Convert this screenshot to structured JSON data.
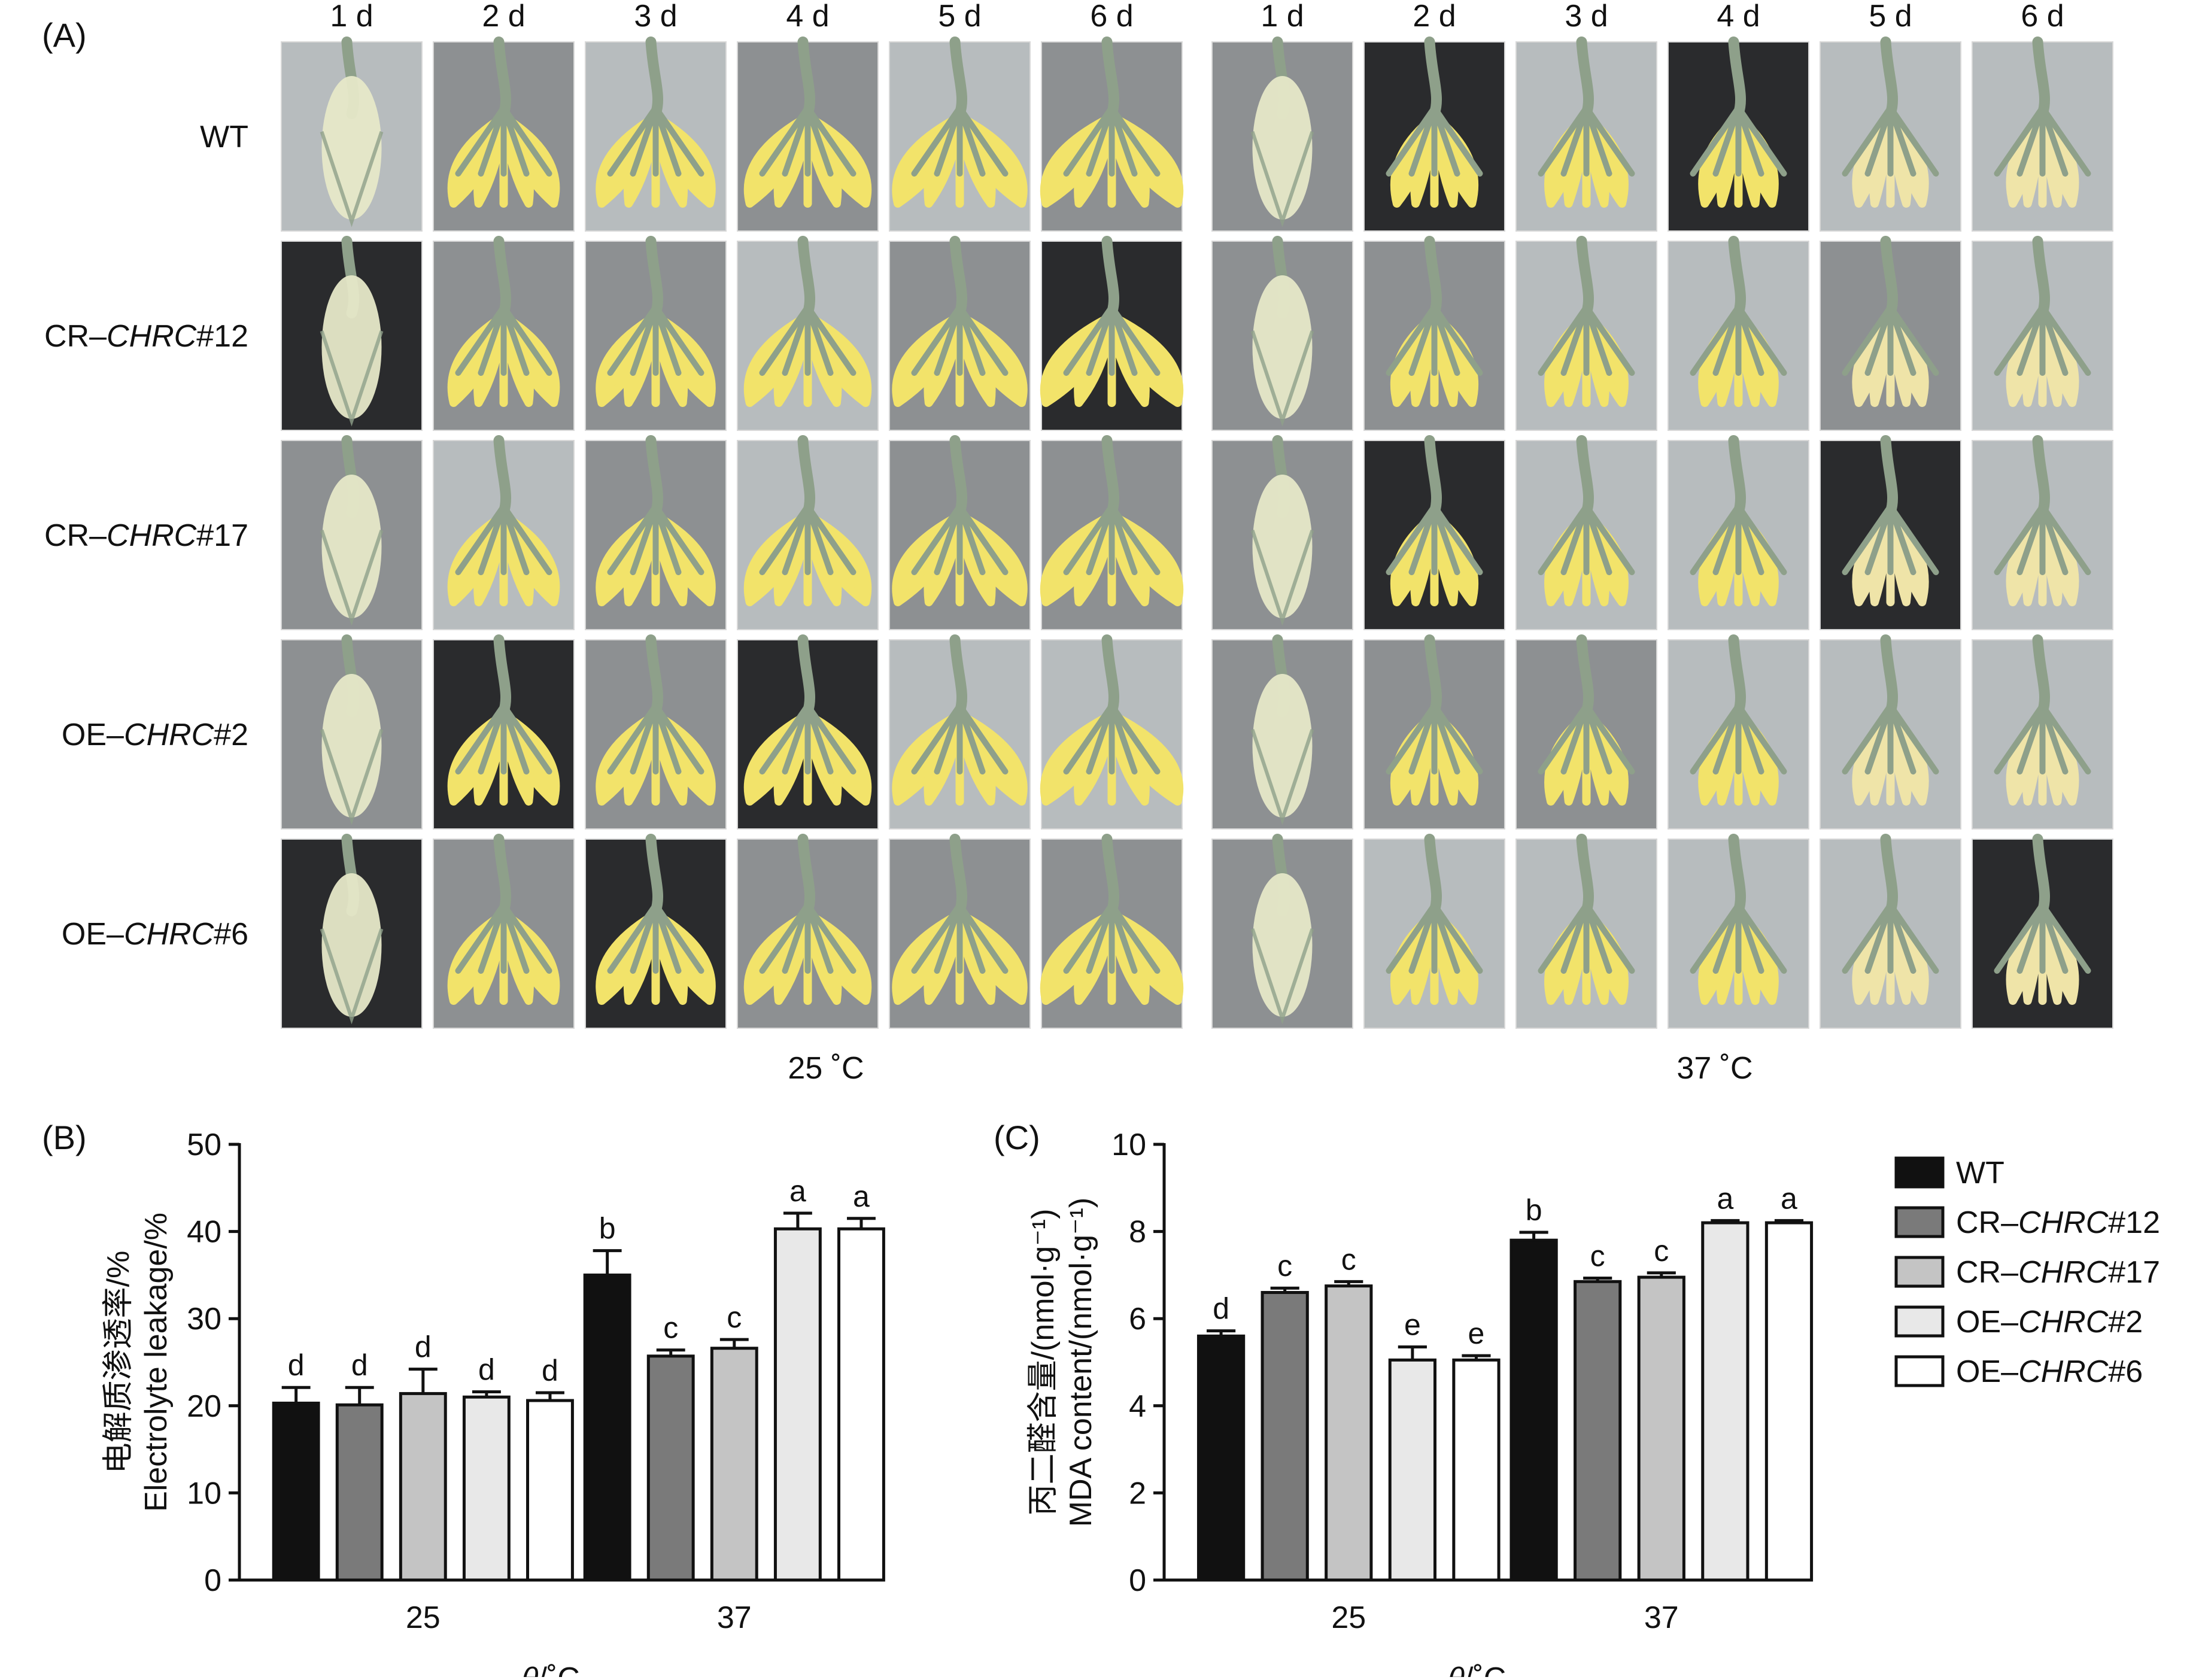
{
  "panel_a": {
    "label": "(A)",
    "days": [
      "1 d",
      "2 d",
      "3 d",
      "4 d",
      "5 d",
      "6 d"
    ],
    "rows": [
      {
        "prefix": "WT",
        "gene": "",
        "suffix": ""
      },
      {
        "prefix": "CR–",
        "gene": "CHRC",
        "suffix": "#12"
      },
      {
        "prefix": "CR–",
        "gene": "CHRC",
        "suffix": "#17"
      },
      {
        "prefix": "OE–",
        "gene": "CHRC",
        "suffix": "#2"
      },
      {
        "prefix": "OE–",
        "gene": "CHRC",
        "suffix": "#6"
      }
    ],
    "conditions": [
      "25 ˚C",
      "37 ˚C"
    ],
    "photo_tones": {
      "dark": "#2a2b2d",
      "grey": "#8d9092",
      "light": "#b7bcbe",
      "petal": "#f2e36a",
      "bud": "#e6e8c8",
      "stem": "#8ea08a"
    }
  },
  "legend": [
    {
      "prefix": "WT",
      "gene": "",
      "suffix": "",
      "color": "#111111"
    },
    {
      "prefix": "CR–",
      "gene": "CHRC",
      "suffix": "#12",
      "color": "#7a7a7a"
    },
    {
      "prefix": "CR–",
      "gene": "CHRC",
      "suffix": "#17",
      "color": "#c4c4c4"
    },
    {
      "prefix": "OE–",
      "gene": "CHRC",
      "suffix": "#2",
      "color": "#e8e8e8"
    },
    {
      "prefix": "OE–",
      "gene": "CHRC",
      "suffix": "#6",
      "color": "#ffffff"
    }
  ],
  "chart_data": [
    {
      "panel": "(B)",
      "type": "bar",
      "categories": [
        "25",
        "37"
      ],
      "xlabel_symbol": "θ",
      "xlabel_unit": "/˚C",
      "ylabel_cn": "电解质渗透率/%",
      "ylabel_en": "Electrolyte leakage/%",
      "ylim": [
        0,
        50
      ],
      "yticks": [
        0,
        10,
        20,
        30,
        40,
        50
      ],
      "series": [
        {
          "name": "WT",
          "values": [
            20.3,
            35.0
          ],
          "errors": [
            1.8,
            2.8
          ],
          "letters": [
            "d",
            "b"
          ]
        },
        {
          "name": "CR–CHRC#12",
          "values": [
            20.1,
            25.7
          ],
          "errors": [
            2.0,
            0.7
          ],
          "letters": [
            "d",
            "c"
          ]
        },
        {
          "name": "CR–CHRC#17",
          "values": [
            21.4,
            26.6
          ],
          "errors": [
            2.8,
            1.0
          ],
          "letters": [
            "d",
            "c"
          ]
        },
        {
          "name": "OE–CHRC#2",
          "values": [
            21.0,
            40.3
          ],
          "errors": [
            0.6,
            1.8
          ],
          "letters": [
            "d",
            "a"
          ]
        },
        {
          "name": "OE–CHRC#6",
          "values": [
            20.6,
            40.3
          ],
          "errors": [
            0.9,
            1.2
          ],
          "letters": [
            "d",
            "a"
          ]
        }
      ]
    },
    {
      "panel": "(C)",
      "type": "bar",
      "categories": [
        "25",
        "37"
      ],
      "xlabel_symbol": "θ",
      "xlabel_unit": "/˚C",
      "ylabel_cn": "丙二醛含量/(nmol·g⁻¹)",
      "ylabel_en": "MDA content/(nmol·g⁻¹)",
      "ylim": [
        0,
        10
      ],
      "yticks": [
        0,
        2,
        4,
        6,
        8,
        10
      ],
      "series": [
        {
          "name": "WT",
          "values": [
            5.6,
            7.8
          ],
          "errors": [
            0.12,
            0.18
          ],
          "letters": [
            "d",
            "b"
          ]
        },
        {
          "name": "CR–CHRC#12",
          "values": [
            6.6,
            6.85
          ],
          "errors": [
            0.1,
            0.08
          ],
          "letters": [
            "c",
            "c"
          ]
        },
        {
          "name": "CR–CHRC#17",
          "values": [
            6.75,
            6.95
          ],
          "errors": [
            0.1,
            0.1
          ],
          "letters": [
            "c",
            "c"
          ]
        },
        {
          "name": "OE–CHRC#2",
          "values": [
            5.05,
            8.2
          ],
          "errors": [
            0.3,
            0.05
          ],
          "letters": [
            "e",
            "a"
          ]
        },
        {
          "name": "OE–CHRC#6",
          "values": [
            5.05,
            8.2
          ],
          "errors": [
            0.1,
            0.05
          ],
          "letters": [
            "e",
            "a"
          ]
        }
      ]
    }
  ]
}
